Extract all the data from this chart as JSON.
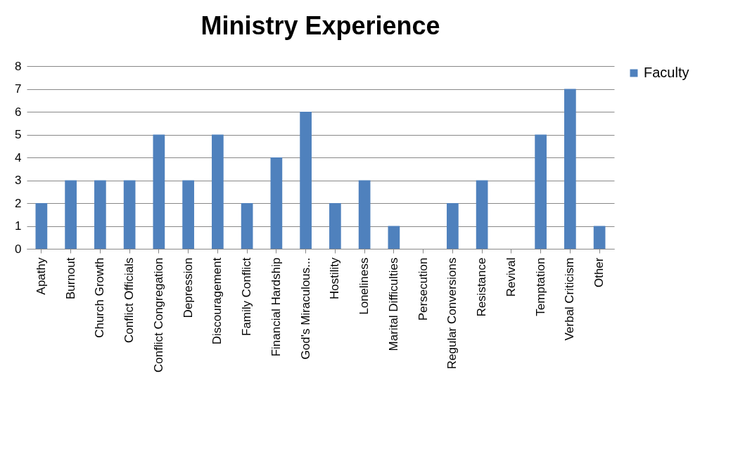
{
  "chart_data": {
    "type": "bar",
    "title": "Ministry Experience",
    "categories": [
      "Apathy",
      "Burnout",
      "Church Growth",
      "Conflict Officials",
      "Conflict Congregation",
      "Depression",
      "Discouragement",
      "Family Conflict",
      "Financial Hardship",
      "God's Miraculous...",
      "Hostility",
      "Loneliness",
      "Marital Difficulties",
      "Persecution",
      "Regular Conversions",
      "Resistance",
      "Revival",
      "Temptation",
      "Verbal Criticism",
      "Other"
    ],
    "series": [
      {
        "name": "Faculty",
        "color": "#4f81bd",
        "values": [
          2,
          3,
          3,
          3,
          5,
          3,
          5,
          2,
          4,
          6,
          2,
          3,
          1,
          0,
          2,
          3,
          0,
          5,
          7,
          1
        ]
      }
    ],
    "ylim": [
      0,
      8
    ],
    "yticks": [
      0,
      1,
      2,
      3,
      4,
      5,
      6,
      7,
      8
    ],
    "grid": "y",
    "legend": "right"
  }
}
